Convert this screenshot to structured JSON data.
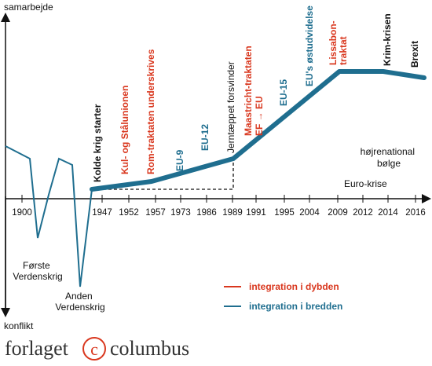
{
  "axes": {
    "y_top_label": "samarbejde",
    "y_bottom_label": "konflikt"
  },
  "years": [
    "1900",
    "1947",
    "1952",
    "1957",
    "1973",
    "1986",
    "1989",
    "1991",
    "1995",
    "2004",
    "2009",
    "2012",
    "2014",
    "2016"
  ],
  "early_events": {
    "ww1": [
      "Første",
      "Verdenskrig"
    ],
    "ww2": [
      "Anden",
      "Verdenskrig"
    ]
  },
  "events": {
    "cold_war_start": "Kolde krig starter",
    "coal_steel": "Kul- og Stålunionen",
    "rome_treaty": "Rom-traktaten underskrives",
    "eu9": "EU-9",
    "eu12": "EU-12",
    "iron_curtain": "Jerntæppet forsvinder",
    "maastricht": [
      "Maastricht-traktaten",
      "EF → EU"
    ],
    "eu15": "EU-15",
    "eastern_expansion": "EU's østudvidelse",
    "lisbon": [
      "Lissabon-",
      "traktat"
    ],
    "crimea": "Krim-krisen",
    "brexit": "Brexit"
  },
  "annotations": {
    "nationalism": [
      "højrenational",
      "bølge"
    ],
    "euro_crisis": "Euro-krise"
  },
  "legend": {
    "depth": {
      "label": "integration i dybden",
      "color": "#d9371e"
    },
    "breadth": {
      "label": "integration i bredden",
      "color": "#1f6e8f"
    }
  },
  "colors": {
    "line": "#1f6e8f",
    "red": "#d9371e",
    "blue": "#1f6e8f"
  },
  "publisher": {
    "left": "forlaget",
    "right": "columbus"
  }
}
